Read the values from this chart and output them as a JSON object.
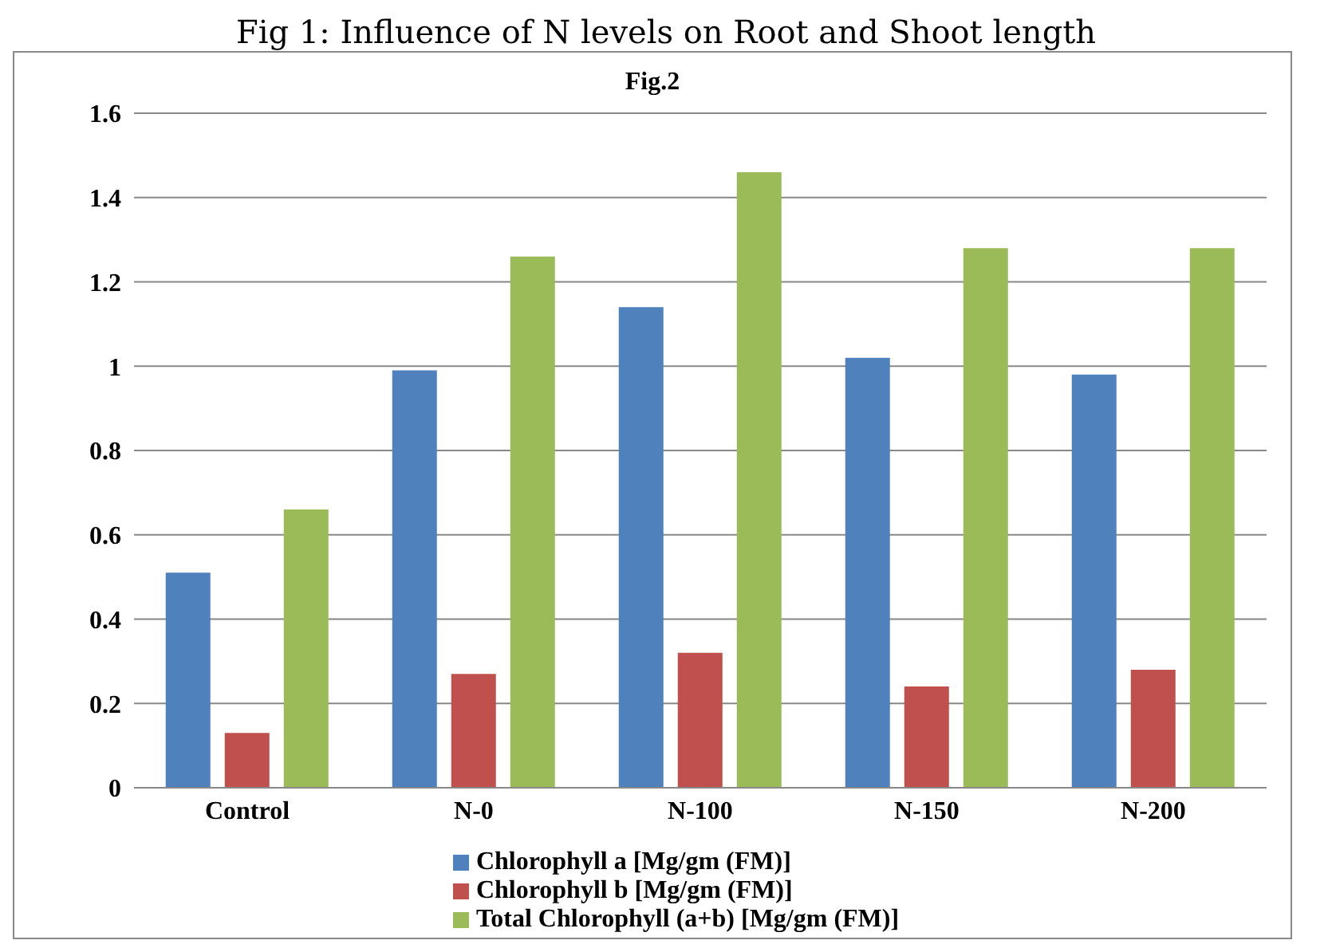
{
  "chart_data": {
    "type": "bar",
    "title": "Fig.2",
    "annotations": [
      "Fig 1: Influence of N levels on Root and Shoot length"
    ],
    "categories": [
      "Control",
      "N-0",
      "N-100",
      "N-150",
      "N-200"
    ],
    "series": [
      {
        "name": "Chlorophyll  a [Mg/gm (FM)]",
        "color": "#4f81bd",
        "values": [
          0.51,
          0.99,
          1.14,
          1.02,
          0.98
        ]
      },
      {
        "name": "Chlorophyll b [Mg/gm (FM)]",
        "color": "#c0504d",
        "values": [
          0.13,
          0.27,
          0.32,
          0.24,
          0.28
        ]
      },
      {
        "name": "Total Chlorophyll  (a+b) [Mg/gm (FM)]",
        "color": "#9bbb59",
        "values": [
          0.66,
          1.26,
          1.46,
          1.28,
          1.28
        ]
      }
    ],
    "ylim": [
      0,
      1.6
    ],
    "yticks": [
      0,
      0.2,
      0.4,
      0.6,
      0.8,
      1,
      1.2,
      1.4,
      1.6
    ],
    "grid": "y",
    "legend": "bottom"
  }
}
